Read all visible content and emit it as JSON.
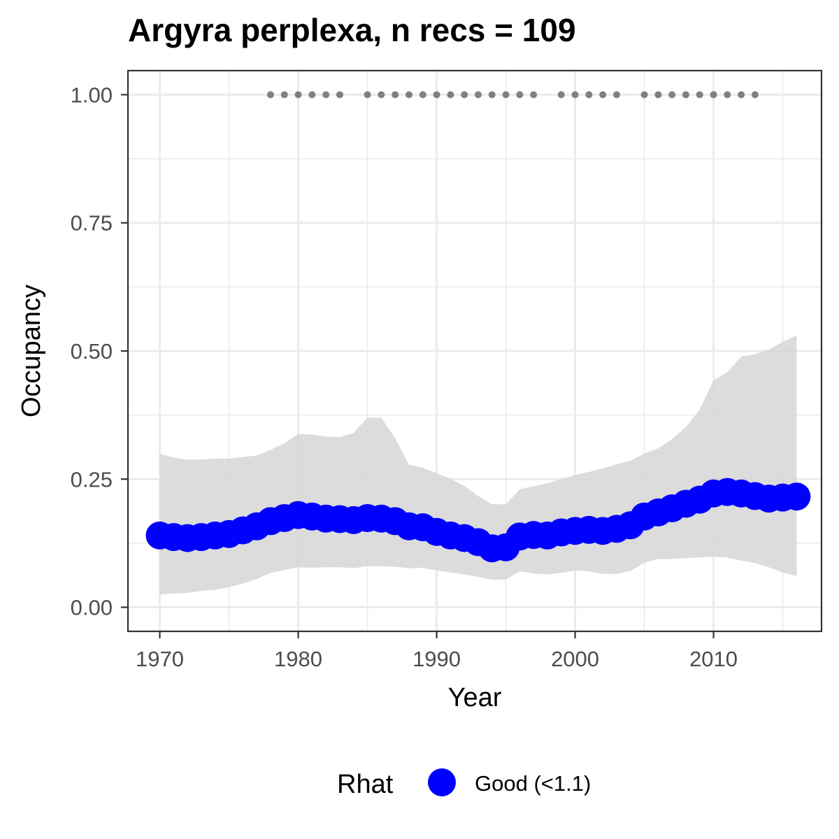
{
  "chart_data": {
    "type": "line",
    "title": "Argyra perplexa, n recs = 109",
    "xlabel": "Year",
    "ylabel": "Occupancy",
    "xlim": [
      1967.7,
      2017.8
    ],
    "ylim": [
      -0.047,
      1.047
    ],
    "x_ticks": [
      1970,
      1980,
      1990,
      2000,
      2010
    ],
    "x_tick_labels": [
      "1970",
      "1980",
      "1990",
      "2000",
      "2010"
    ],
    "x_minor_ticks": [
      1975,
      1985,
      1995,
      2005,
      2015
    ],
    "y_ticks": [
      0,
      0.25,
      0.5,
      0.75,
      1
    ],
    "y_tick_labels": [
      "0.00",
      "0.25",
      "0.50",
      "0.75",
      "1.00"
    ],
    "y_minor_ticks": [
      0.125,
      0.375,
      0.625,
      0.875
    ],
    "grid": true,
    "legend": {
      "position": "bottom",
      "title": "Rhat",
      "entries": [
        {
          "label": "Good (<1.1)",
          "color": "#0000ff"
        }
      ]
    },
    "series": [
      {
        "name": "Good (<1.1)",
        "color": "#0000ff",
        "x": [
          1970,
          1971,
          1972,
          1973,
          1974,
          1975,
          1976,
          1977,
          1978,
          1979,
          1980,
          1981,
          1982,
          1983,
          1984,
          1985,
          1986,
          1987,
          1988,
          1989,
          1990,
          1991,
          1992,
          1993,
          1994,
          1995,
          1996,
          1997,
          1998,
          1999,
          2000,
          2001,
          2002,
          2003,
          2004,
          2005,
          2006,
          2007,
          2008,
          2009,
          2010,
          2011,
          2012,
          2013,
          2014,
          2015,
          2016
        ],
        "values": [
          0.14,
          0.137,
          0.135,
          0.137,
          0.14,
          0.143,
          0.15,
          0.158,
          0.168,
          0.174,
          0.18,
          0.177,
          0.173,
          0.172,
          0.17,
          0.174,
          0.173,
          0.168,
          0.158,
          0.156,
          0.147,
          0.14,
          0.135,
          0.127,
          0.115,
          0.117,
          0.138,
          0.141,
          0.14,
          0.146,
          0.149,
          0.151,
          0.149,
          0.153,
          0.16,
          0.177,
          0.185,
          0.193,
          0.202,
          0.21,
          0.222,
          0.225,
          0.222,
          0.217,
          0.212,
          0.214,
          0.216
        ]
      }
    ],
    "ci_band": {
      "color": "#d6d6d6",
      "x": [
        1970,
        1971,
        1972,
        1973,
        1974,
        1975,
        1976,
        1977,
        1978,
        1979,
        1980,
        1981,
        1982,
        1983,
        1984,
        1985,
        1986,
        1987,
        1988,
        1989,
        1990,
        1991,
        1992,
        1993,
        1994,
        1995,
        1996,
        1997,
        1998,
        1999,
        2000,
        2001,
        2002,
        2003,
        2004,
        2005,
        2006,
        2007,
        2008,
        2009,
        2010,
        2011,
        2012,
        2013,
        2014,
        2015,
        2016
      ],
      "lower": [
        0.025,
        0.027,
        0.028,
        0.032,
        0.034,
        0.039,
        0.046,
        0.055,
        0.067,
        0.073,
        0.078,
        0.077,
        0.078,
        0.078,
        0.076,
        0.08,
        0.08,
        0.079,
        0.076,
        0.077,
        0.072,
        0.068,
        0.064,
        0.059,
        0.054,
        0.054,
        0.07,
        0.066,
        0.064,
        0.067,
        0.072,
        0.07,
        0.065,
        0.065,
        0.071,
        0.087,
        0.094,
        0.094,
        0.096,
        0.097,
        0.099,
        0.097,
        0.091,
        0.086,
        0.078,
        0.068,
        0.061
      ],
      "upper": [
        0.3,
        0.292,
        0.288,
        0.288,
        0.29,
        0.29,
        0.293,
        0.296,
        0.307,
        0.32,
        0.338,
        0.337,
        0.333,
        0.332,
        0.34,
        0.37,
        0.37,
        0.33,
        0.278,
        0.272,
        0.262,
        0.25,
        0.237,
        0.217,
        0.201,
        0.201,
        0.23,
        0.236,
        0.242,
        0.25,
        0.258,
        0.264,
        0.271,
        0.279,
        0.286,
        0.3,
        0.31,
        0.328,
        0.352,
        0.386,
        0.443,
        0.459,
        0.489,
        0.494,
        0.503,
        0.518,
        0.53
      ]
    },
    "records": {
      "color": "#808080",
      "y": 1.0,
      "years": [
        1978,
        1979,
        1980,
        1981,
        1982,
        1983,
        1985,
        1986,
        1987,
        1988,
        1989,
        1990,
        1991,
        1992,
        1993,
        1994,
        1995,
        1996,
        1997,
        1999,
        2000,
        2001,
        2002,
        2003,
        2005,
        2006,
        2007,
        2008,
        2009,
        2010,
        2011,
        2012,
        2013
      ]
    }
  }
}
